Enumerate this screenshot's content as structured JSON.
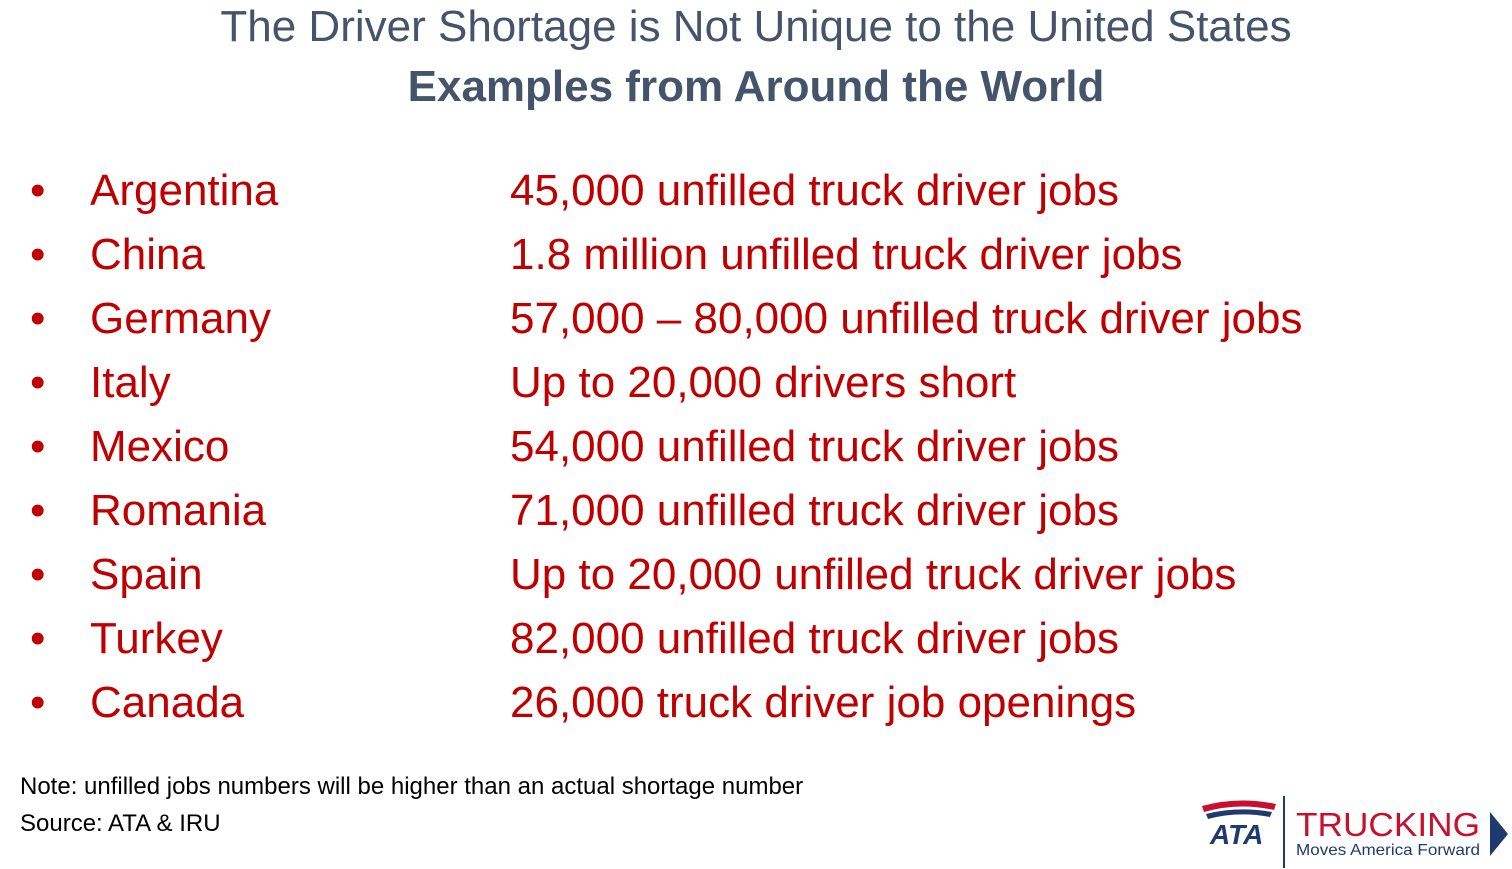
{
  "header": {
    "title": "The Driver Shortage is Not Unique to the United States",
    "subtitle": "Examples from Around the World"
  },
  "items": [
    {
      "country": "Argentina",
      "text": "45,000 unfilled truck driver jobs"
    },
    {
      "country": "China",
      "text": "1.8 million unfilled truck driver jobs"
    },
    {
      "country": "Germany",
      "text": "57,000 – 80,000 unfilled truck driver jobs"
    },
    {
      "country": "Italy",
      "text": "Up to 20,000 drivers short"
    },
    {
      "country": "Mexico",
      "text": "54,000 unfilled truck driver jobs"
    },
    {
      "country": "Romania",
      "text": "71,000 unfilled truck driver jobs"
    },
    {
      "country": "Spain",
      "text": "Up to 20,000 unfilled truck driver jobs"
    },
    {
      "country": "Turkey",
      "text": "82,000 unfilled truck driver jobs"
    },
    {
      "country": "Canada",
      "text": "26,000 truck driver job openings"
    }
  ],
  "footer": {
    "note": "Note: unfilled jobs numbers will be higher than an actual shortage number",
    "source": "Source: ATA & IRU"
  },
  "logo": {
    "mark": "ATA",
    "name": "TRUCKING",
    "tagline": "Moves America Forward"
  }
}
